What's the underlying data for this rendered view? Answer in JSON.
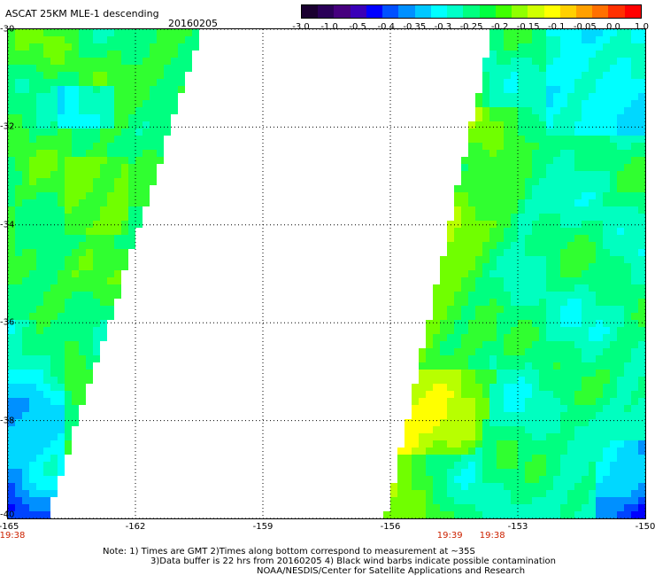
{
  "header": {
    "title": "ASCAT 25KM MLE-1 descending",
    "date": "20160205"
  },
  "colorbar": {
    "colors": [
      "#1a0030",
      "#2a0058",
      "#46007e",
      "#3a00b8",
      "#0000ff",
      "#0050ff",
      "#0090ff",
      "#00c8ff",
      "#00ffff",
      "#00ffc8",
      "#00ff80",
      "#00ff40",
      "#40ff00",
      "#90ff00",
      "#d0ff00",
      "#ffff00",
      "#ffd000",
      "#ffa000",
      "#ff7000",
      "#ff3000",
      "#ff0000"
    ],
    "labels": [
      "-3.0",
      "-1.0",
      "-0.5",
      "-0.4",
      "-0.35",
      "-0.3",
      "-0.25",
      "-0.2",
      "-0.15",
      "-0.1",
      "-0.05",
      "0.0",
      "1.0"
    ]
  },
  "map": {
    "lat_labels": [
      "-30",
      "-32",
      "-34",
      "-36",
      "-38",
      "-40"
    ],
    "lon_labels": [
      "-165",
      "-162",
      "-159",
      "-156",
      "-153",
      "-150"
    ],
    "swath_times": [
      {
        "text": "19:38",
        "lon": "-165"
      },
      {
        "text": "19:39",
        "lon": "-154.6"
      },
      {
        "text": "19:38",
        "lon": "-153.6"
      }
    ],
    "swaths": [
      {
        "name": "west-swath",
        "field": "green-cyan mix with blue patches in the southwest"
      },
      {
        "name": "east-swath",
        "field": "green-cyan with yellow/orange band along western edge and blue in southeast"
      }
    ]
  },
  "notes": {
    "line1": "Note: 1) Times are GMT 2)Times along bottom correspond to measurement at ~35S",
    "line2": "3)Data buffer is 22 hrs from 20160205 4) Black wind barbs indicate possible contamination",
    "line3": "NOAA/NESDIS/Center for Satellite Applications and Research"
  }
}
